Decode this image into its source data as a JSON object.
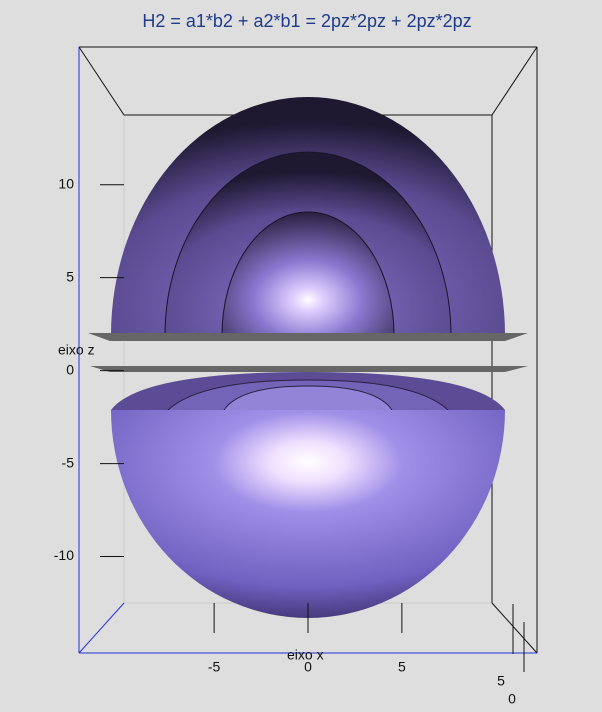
{
  "chart_data": {
    "type": "surface3d",
    "title": "H2 = a1*b2 + a2*b1 = 2pz*2pz + 2pz*2pz",
    "zlabel": "eixo z",
    "xlabel": "eixo x",
    "zlim": [
      -12.5,
      13.75
    ],
    "zticks": [
      10,
      5,
      0,
      -5,
      -10
    ],
    "xlim": [
      -9.8,
      9.8
    ],
    "xticks": [
      -5,
      0,
      5
    ],
    "yticks": [
      5,
      0
    ]
  }
}
